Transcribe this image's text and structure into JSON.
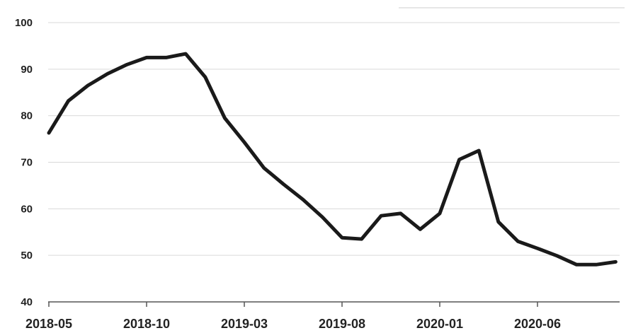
{
  "chart_data": {
    "type": "line",
    "title": "",
    "xlabel": "",
    "ylabel": "",
    "ylim": [
      40,
      100
    ],
    "yticks": [
      "40",
      "50",
      "60",
      "70",
      "80",
      "90",
      "100"
    ],
    "xticks": [
      "2018-05",
      "2018-10",
      "2019-03",
      "2019-08",
      "2020-01",
      "2020-06"
    ],
    "grid": "horizontal",
    "colors": {
      "line": "#1a1a1a",
      "grid": "#d9d9d9",
      "axis": "#555555"
    },
    "series": [
      {
        "x": [
          "2018-05",
          "2018-06",
          "2018-07",
          "2018-08",
          "2018-09",
          "2018-10",
          "2018-11",
          "2018-12",
          "2019-01",
          "2019-02",
          "2019-03",
          "2019-04",
          "2019-05",
          "2019-06",
          "2019-07",
          "2019-08",
          "2019-09",
          "2019-10",
          "2019-11",
          "2019-12",
          "2020-01",
          "2020-02",
          "2020-03",
          "2020-04",
          "2020-05",
          "2020-06",
          "2020-07",
          "2020-08",
          "2020-09",
          "2020-10"
        ],
        "values": [
          76.3,
          83.2,
          86.5,
          89.0,
          91.0,
          92.5,
          92.5,
          93.3,
          88.3,
          79.5,
          74.3,
          68.8,
          65.3,
          62.0,
          58.2,
          53.8,
          53.5,
          58.5,
          59.0,
          55.6,
          59.0,
          70.6,
          72.5,
          57.2,
          53.0,
          51.5,
          49.9,
          48.0,
          48.0,
          48.6
        ]
      }
    ]
  }
}
